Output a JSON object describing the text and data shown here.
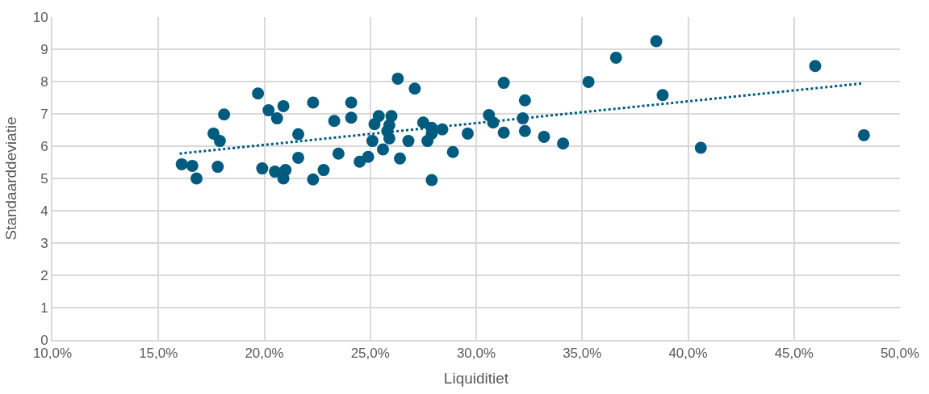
{
  "chart_data": {
    "type": "scatter",
    "xlabel": "Liquiditiet",
    "ylabel": "Standaarddeviatie",
    "xlim": [
      0.1,
      0.5
    ],
    "xticks": [
      {
        "value": 0.1,
        "label": "10,0%"
      },
      {
        "value": 0.15,
        "label": "15,0%"
      },
      {
        "value": 0.2,
        "label": "20,0%"
      },
      {
        "value": 0.25,
        "label": "25,0%"
      },
      {
        "value": 0.3,
        "label": "30,0%"
      },
      {
        "value": 0.35,
        "label": "35,0%"
      },
      {
        "value": 0.4,
        "label": "40,0%"
      },
      {
        "value": 0.45,
        "label": "45,0%"
      },
      {
        "value": 0.5,
        "label": "50,0%"
      }
    ],
    "ylim": [
      0,
      10
    ],
    "yticks": [
      0,
      1,
      2,
      3,
      4,
      5,
      6,
      7,
      8,
      9,
      10
    ],
    "grid": true,
    "legend": false,
    "series": [
      {
        "marker": "circle",
        "color": "#005b7f",
        "x": [
          0.161,
          0.166,
          0.168,
          0.176,
          0.179,
          0.178,
          0.181,
          0.197,
          0.199,
          0.202,
          0.206,
          0.205,
          0.209,
          0.209,
          0.21,
          0.216,
          0.216,
          0.223,
          0.223,
          0.228,
          0.233,
          0.235,
          0.241,
          0.241,
          0.245,
          0.249,
          0.252,
          0.254,
          0.251,
          0.256,
          0.258,
          0.259,
          0.26,
          0.259,
          0.263,
          0.264,
          0.268,
          0.271,
          0.275,
          0.277,
          0.279,
          0.279,
          0.279,
          0.284,
          0.289,
          0.296,
          0.306,
          0.308,
          0.313,
          0.313,
          0.323,
          0.322,
          0.323,
          0.332,
          0.341,
          0.353,
          0.366,
          0.385,
          0.388,
          0.406,
          0.46,
          0.483
        ],
        "values": [
          5.44,
          5.39,
          5.0,
          6.39,
          6.16,
          5.36,
          6.98,
          7.63,
          5.31,
          7.11,
          6.86,
          5.21,
          7.24,
          5.0,
          5.26,
          6.37,
          5.64,
          7.35,
          4.97,
          5.26,
          6.78,
          5.77,
          7.35,
          6.88,
          5.52,
          5.67,
          6.68,
          6.93,
          6.16,
          5.9,
          6.47,
          6.65,
          6.93,
          6.24,
          8.09,
          5.62,
          6.16,
          7.78,
          6.73,
          6.16,
          6.57,
          6.39,
          4.95,
          6.52,
          5.82,
          6.39,
          6.96,
          6.73,
          7.96,
          6.42,
          7.42,
          6.86,
          6.47,
          6.29,
          6.08,
          7.99,
          8.74,
          9.25,
          7.58,
          5.95,
          8.48,
          6.34
        ]
      },
      {
        "type": "line",
        "marker": "none",
        "line_style": "dotted",
        "color": "#005b7f",
        "x": [
          0.16,
          0.482
        ],
        "values": [
          5.77,
          7.94
        ]
      }
    ]
  }
}
